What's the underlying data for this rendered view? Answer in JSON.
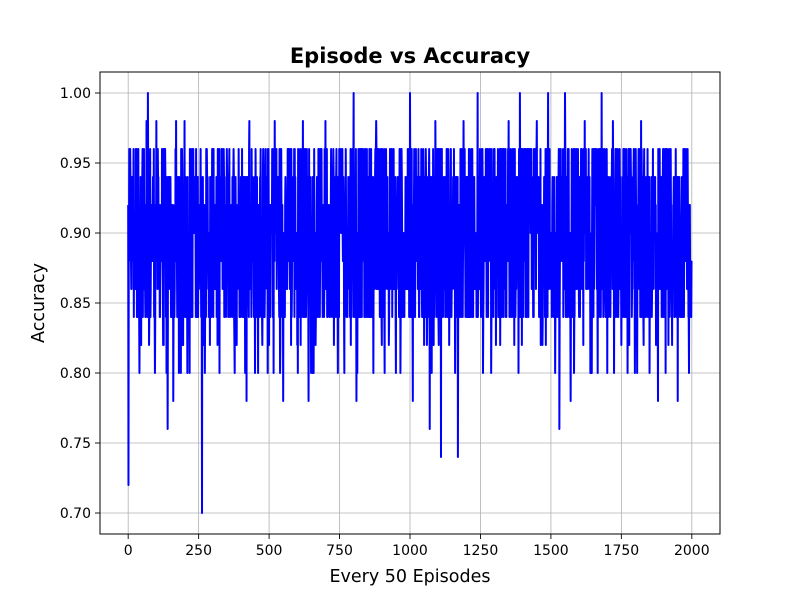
{
  "chart_data": {
    "type": "line",
    "title": "Episode vs Accuracy",
    "xlabel": "Every 50 Episodes",
    "ylabel": "Accuracy",
    "xlim": [
      -100,
      2100
    ],
    "ylim": [
      0.685,
      1.015
    ],
    "xticks": [
      0,
      250,
      500,
      750,
      1000,
      1250,
      1500,
      1750,
      2000
    ],
    "xtick_labels": [
      "0",
      "250",
      "500",
      "750",
      "1000",
      "1250",
      "1500",
      "1750",
      "2000"
    ],
    "yticks": [
      0.7,
      0.75,
      0.8,
      0.85,
      0.9,
      0.95,
      1.0
    ],
    "ytick_labels": [
      "0.70",
      "0.75",
      "0.80",
      "0.85",
      "0.90",
      "0.95",
      "1.00"
    ],
    "grid": true,
    "color": "#0000ff",
    "series": [
      {
        "x_start": 0,
        "x_end": 1999,
        "values_note_keyframes": [
          [
            0,
            0.92
          ],
          [
            1,
            0.72
          ],
          [
            3,
            0.9
          ],
          [
            6,
            0.96
          ],
          [
            10,
            0.88
          ],
          [
            15,
            0.94
          ],
          [
            20,
            0.84
          ],
          [
            30,
            0.96
          ],
          [
            40,
            0.8
          ],
          [
            50,
            0.94
          ],
          [
            60,
            0.86
          ],
          [
            65,
            0.98
          ],
          [
            70,
            1.0
          ],
          [
            75,
            0.84
          ],
          [
            85,
            0.92
          ],
          [
            95,
            0.8
          ],
          [
            100,
            0.98
          ],
          [
            110,
            0.86
          ],
          [
            120,
            0.96
          ],
          [
            140,
            0.76
          ],
          [
            150,
            0.94
          ],
          [
            160,
            0.78
          ],
          [
            170,
            0.98
          ],
          [
            180,
            0.8
          ],
          [
            200,
            0.98
          ],
          [
            210,
            0.8
          ],
          [
            230,
            0.96
          ],
          [
            240,
            0.84
          ],
          [
            250,
            0.92
          ],
          [
            262,
            0.7
          ],
          [
            275,
            0.9
          ],
          [
            290,
            0.82
          ],
          [
            300,
            0.96
          ],
          [
            320,
            0.84
          ],
          [
            350,
            0.96
          ],
          [
            380,
            0.82
          ],
          [
            400,
            0.94
          ],
          [
            420,
            0.78
          ],
          [
            430,
            0.98
          ],
          [
            450,
            0.8
          ],
          [
            470,
            0.96
          ],
          [
            500,
            0.82
          ],
          [
            520,
            0.98
          ],
          [
            550,
            0.78
          ],
          [
            570,
            0.96
          ],
          [
            600,
            0.82
          ],
          [
            620,
            0.98
          ],
          [
            640,
            0.78
          ],
          [
            660,
            0.96
          ],
          [
            700,
            0.98
          ],
          [
            730,
            0.82
          ],
          [
            760,
            0.96
          ],
          [
            790,
            0.82
          ],
          [
            800,
            1.0
          ],
          [
            810,
            0.78
          ],
          [
            830,
            0.96
          ],
          [
            860,
            0.84
          ],
          [
            880,
            0.98
          ],
          [
            900,
            0.82
          ],
          [
            920,
            0.94
          ],
          [
            950,
            0.8
          ],
          [
            970,
            0.96
          ],
          [
            1000,
            1.0
          ],
          [
            1010,
            0.78
          ],
          [
            1030,
            0.96
          ],
          [
            1060,
            0.82
          ],
          [
            1070,
            0.76
          ],
          [
            1090,
            0.98
          ],
          [
            1110,
            0.74
          ],
          [
            1130,
            0.96
          ],
          [
            1150,
            0.86
          ],
          [
            1170,
            0.74
          ],
          [
            1190,
            0.98
          ],
          [
            1220,
            0.84
          ],
          [
            1240,
            1.0
          ],
          [
            1260,
            0.84
          ],
          [
            1290,
            0.96
          ],
          [
            1320,
            0.82
          ],
          [
            1350,
            0.98
          ],
          [
            1370,
            0.82
          ],
          [
            1390,
            1.0
          ],
          [
            1420,
            0.84
          ],
          [
            1450,
            0.98
          ],
          [
            1470,
            0.82
          ],
          [
            1490,
            1.0
          ],
          [
            1510,
            0.84
          ],
          [
            1530,
            0.76
          ],
          [
            1550,
            1.0
          ],
          [
            1570,
            0.78
          ],
          [
            1590,
            0.96
          ],
          [
            1600,
            0.84
          ],
          [
            1620,
            0.98
          ],
          [
            1640,
            0.8
          ],
          [
            1660,
            0.96
          ],
          [
            1680,
            1.0
          ],
          [
            1700,
            0.8
          ],
          [
            1720,
            0.98
          ],
          [
            1750,
            0.82
          ],
          [
            1780,
            0.96
          ],
          [
            1800,
            0.84
          ],
          [
            1820,
            0.98
          ],
          [
            1850,
            0.8
          ],
          [
            1880,
            0.78
          ],
          [
            1900,
            0.96
          ],
          [
            1930,
            0.82
          ],
          [
            1950,
            0.78
          ],
          [
            1970,
            0.96
          ],
          [
            1990,
            0.8
          ],
          [
            1999,
            0.88
          ]
        ]
      }
    ]
  }
}
